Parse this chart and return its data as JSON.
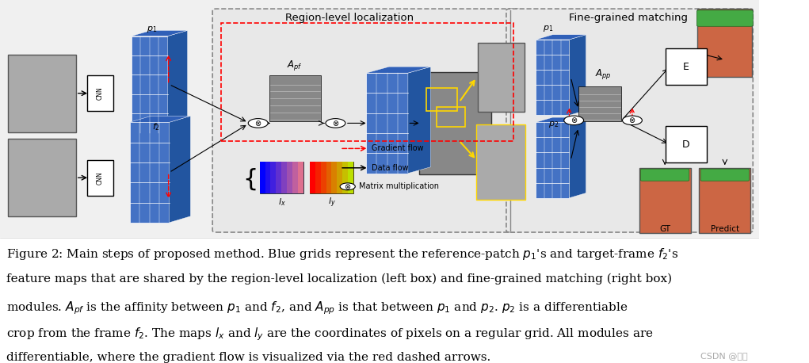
{
  "title": "",
  "bg_color": "#ffffff",
  "diagram_bg": "#e8e8e8",
  "caption_lines": [
    "Figure 2: Main steps of proposed method. Blue grids represent the reference-patch $p_1$'s and target-frame $f_2$'s",
    "feature maps that are shared by the region-level localization (left box) and fine-grained matching (right box)",
    "modules. $A_{pf}$ is the affinity between $p_1$ and $f_2$, and $A_{pp}$ is that between $p_1$ and $p_2$. $p_2$ is a differentiable",
    "crop from the frame $f_2$. The maps $l_x$ and $l_y$ are the coordinates of pixels on a regular grid. All modules are",
    "differentiable, where the gradient flow is visualized via the red dashed arrows."
  ],
  "watermark": "CSDN @藏晖",
  "section_labels": [
    "Region-level localization",
    "Fine-grained matching"
  ],
  "legend_items": [
    "Gradient flow",
    "Data flow",
    "Matrix multiplication"
  ],
  "caption_fontsize": 11.0,
  "label_fontsize": 9.5
}
